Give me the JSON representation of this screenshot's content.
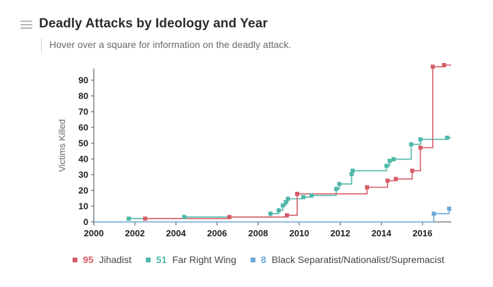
{
  "header": {
    "title": "Deadly Attacks by Ideology and Year",
    "subtitle": "Hover over a square for information on the deadly attack."
  },
  "chart_data": {
    "type": "line",
    "step": true,
    "ylabel": "Victims Killed",
    "xlabel": "",
    "xlim": [
      2000,
      2017.4
    ],
    "ylim": [
      0,
      95
    ],
    "x_ticks": [
      "2000",
      "2002",
      "2004",
      "2006",
      "2008",
      "2010",
      "2012",
      "2014",
      "2016"
    ],
    "y_ticks": [
      "0",
      "10",
      "20",
      "30",
      "40",
      "50",
      "60",
      "70",
      "80",
      "90"
    ],
    "grid": false,
    "legend_position": "bottom",
    "series": [
      {
        "name": "Far Right Wing",
        "count": "51",
        "color": "#4fb7a9",
        "points": [
          [
            2001.7,
            2
          ],
          [
            2004.4,
            3
          ],
          [
            2008.6,
            5
          ],
          [
            2009.0,
            7
          ],
          [
            2009.2,
            10
          ],
          [
            2009.35,
            12
          ],
          [
            2009.45,
            14
          ],
          [
            2010.2,
            15
          ],
          [
            2010.6,
            16
          ],
          [
            2011.8,
            20
          ],
          [
            2011.95,
            23
          ],
          [
            2012.55,
            29
          ],
          [
            2012.6,
            31
          ],
          [
            2014.25,
            34
          ],
          [
            2014.4,
            37
          ],
          [
            2014.6,
            38
          ],
          [
            2015.45,
            47
          ],
          [
            2015.9,
            50
          ],
          [
            2017.2,
            51
          ]
        ]
      },
      {
        "name": "Jihadist",
        "count": "95",
        "color": "#d55c66",
        "points": [
          [
            2002.5,
            2
          ],
          [
            2006.6,
            3
          ],
          [
            2009.4,
            4
          ],
          [
            2009.9,
            17
          ],
          [
            2013.3,
            21
          ],
          [
            2014.3,
            25
          ],
          [
            2014.7,
            26
          ],
          [
            2015.5,
            31
          ],
          [
            2015.9,
            45
          ],
          [
            2016.5,
            94
          ],
          [
            2017.05,
            95
          ]
        ]
      },
      {
        "name": "Black Separatist/Nationalist/Supremacist",
        "count": "8",
        "color": "#6aa6d6",
        "points": [
          [
            2016.55,
            5
          ],
          [
            2017.3,
            8
          ]
        ]
      }
    ]
  },
  "legend": {
    "items": [
      {
        "count": "95",
        "label": "Jihadist",
        "color": "#d55c66"
      },
      {
        "count": "51",
        "label": "Far Right Wing",
        "color": "#4fb7a9"
      },
      {
        "count": "8",
        "label": "Black Separatist/Nationalist/Supremacist",
        "color": "#6aa6d6"
      }
    ]
  }
}
